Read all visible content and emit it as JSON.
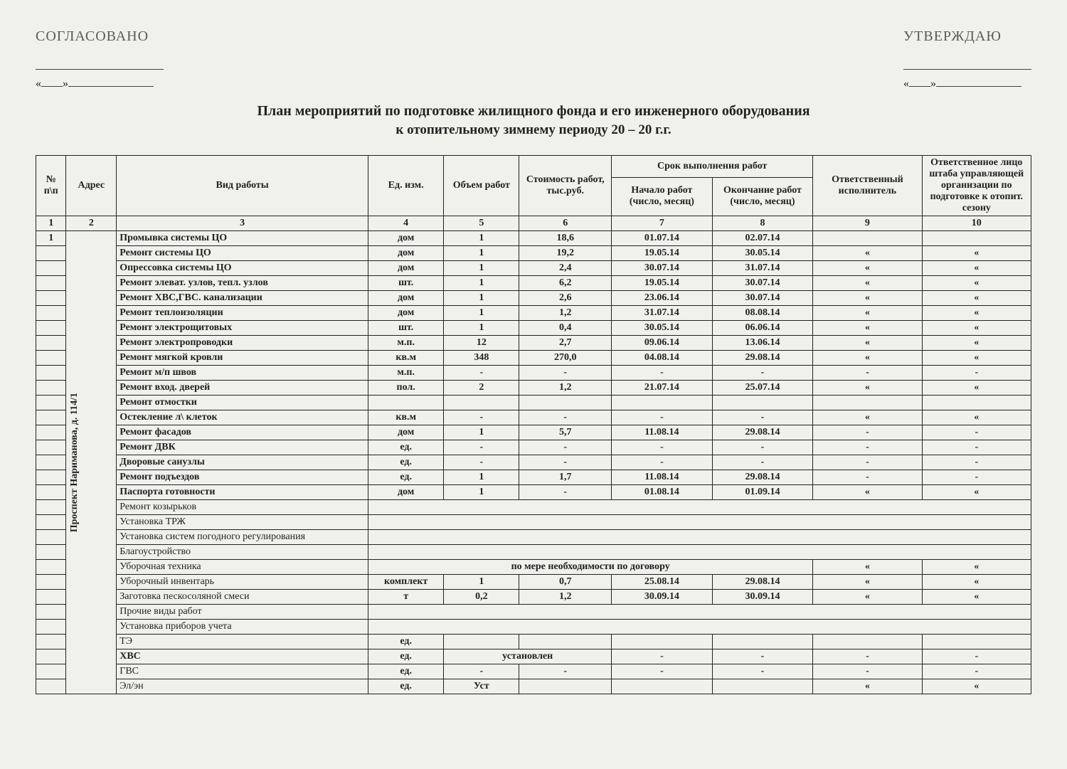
{
  "header": {
    "left_label": "СОГЛАСОВАНО",
    "right_label": "УТВЕРЖДАЮ",
    "quote_open": "«",
    "quote_close": "»"
  },
  "title": "План мероприятий  по подготовке жилищного фонда и его инженерного оборудования",
  "subtitle": "к отопительному зимнему периоду 20     – 20     г.г.",
  "columns": {
    "c1": "№ п\\п",
    "c2": "Адрес",
    "c3": "Вид работы",
    "c4": "Ед. изм.",
    "c5": "Объем работ",
    "c6": "Стоимость работ, тыс.руб.",
    "c7group": "Срок выполнения работ",
    "c7": "Начало работ (число, месяц)",
    "c8": "Окончание работ (число, месяц)",
    "c9": "Ответственный исполнитель",
    "c10": "Ответственное лицо штаба управляющей организации по подготовке к отопит. сезону"
  },
  "colnums": [
    "1",
    "2",
    "3",
    "4",
    "5",
    "6",
    "7",
    "8",
    "9",
    "10"
  ],
  "address": "Проспект  Нариманова, д. 114/1",
  "row_num": "1",
  "rows": [
    {
      "work": "Промывка системы ЦО",
      "unit": "дом",
      "vol": "1",
      "cost": "18,6",
      "start": "01.07.14",
      "end": "02.07.14",
      "resp": "",
      "resp2": ""
    },
    {
      "work": "Ремонт системы ЦО",
      "unit": "дом",
      "vol": "1",
      "cost": "19,2",
      "start": "19.05.14",
      "end": "30.05.14",
      "resp": "«",
      "resp2": "«"
    },
    {
      "work": "Опрессовка системы ЦО",
      "unit": "дом",
      "vol": "1",
      "cost": "2,4",
      "start": "30.07.14",
      "end": "31.07.14",
      "resp": "«",
      "resp2": "«"
    },
    {
      "work": "Ремонт элеват. узлов, тепл. узлов",
      "unit": "шт.",
      "vol": "1",
      "cost": "6,2",
      "start": "19.05.14",
      "end": "30.07.14",
      "resp": "«",
      "resp2": "«"
    },
    {
      "work": "Ремонт ХВС,ГВС. канализации",
      "unit": "дом",
      "vol": "1",
      "cost": "2,6",
      "start": "23.06.14",
      "end": "30.07.14",
      "resp": "«",
      "resp2": "«"
    },
    {
      "work": "Ремонт теплоизоляции",
      "unit": "дом",
      "vol": "1",
      "cost": "1,2",
      "start": "31.07.14",
      "end": "08.08.14",
      "resp": "«",
      "resp2": "«"
    },
    {
      "work": "Ремонт электрощитовых",
      "unit": "шт.",
      "vol": "1",
      "cost": "0,4",
      "start": "30.05.14",
      "end": "06.06.14",
      "resp": "«",
      "resp2": "«"
    },
    {
      "work": "Ремонт электропроводки",
      "unit": "м.п.",
      "vol": "12",
      "cost": "2,7",
      "start": "09.06.14",
      "end": "13.06.14",
      "resp": "«",
      "resp2": "«"
    },
    {
      "work": "Ремонт мягкой кровли",
      "unit": "кв.м",
      "vol": "348",
      "cost": "270,0",
      "start": "04.08.14",
      "end": "29.08.14",
      "resp": "«",
      "resp2": "«"
    },
    {
      "work": "Ремонт м/п швов",
      "unit": "м.п.",
      "vol": "-",
      "cost": "-",
      "start": "-",
      "end": "-",
      "resp": "-",
      "resp2": "-"
    },
    {
      "work": "Ремонт вход. дверей",
      "unit": "пол.",
      "vol": "2",
      "cost": "1,2",
      "start": "21.07.14",
      "end": "25.07.14",
      "resp": "«",
      "resp2": "«"
    },
    {
      "work": "Ремонт отмостки",
      "unit": "",
      "vol": "",
      "cost": "",
      "start": "",
      "end": "",
      "resp": "",
      "resp2": ""
    },
    {
      "work": "Остекление л\\ клеток",
      "unit": "кв.м",
      "vol": "-",
      "cost": "-",
      "start": "-",
      "end": "-",
      "resp": "«",
      "resp2": "«"
    },
    {
      "work": "Ремонт фасадов",
      "unit": "дом",
      "vol": "1",
      "cost": "5,7",
      "start": "11.08.14",
      "end": "29.08.14",
      "resp": "-",
      "resp2": "-"
    },
    {
      "work": "Ремонт ДВК",
      "unit": "ед.",
      "vol": "-",
      "cost": "-",
      "start": "-",
      "end": "-",
      "resp": "-",
      "resp2": "-"
    },
    {
      "work": "Дворовые санузлы",
      "unit": "ед.",
      "vol": "-",
      "cost": "-",
      "start": "-",
      "end": "-",
      "resp": "-",
      "resp2": "-"
    },
    {
      "work": "Ремонт подъездов",
      "unit": "ед.",
      "vol": "1",
      "cost": "1,7",
      "start": "11.08.14",
      "end": "29.08.14",
      "resp": "-",
      "resp2": "-"
    },
    {
      "work": "Паспорта готовности",
      "unit": "дом",
      "vol": "1",
      "cost": "-",
      "start": "01.08.14",
      "end": "01.09.14",
      "resp": "«",
      "resp2": "«"
    }
  ],
  "section_rows": [
    {
      "work": "Ремонт козырьков"
    },
    {
      "work": "Установка ТРЖ"
    },
    {
      "work": "Установка систем  погодного регулирования"
    },
    {
      "work": "Благоустройство"
    }
  ],
  "merged_row": {
    "work": "Уборочная техника",
    "merged_text": "по мере необходимости по договору",
    "resp": "«",
    "resp2": "«"
  },
  "rows2": [
    {
      "work": "Уборочный инвентарь",
      "unit": "комплект",
      "vol": "1",
      "cost": "0,7",
      "start": "25.08.14",
      "end": "29.08.14",
      "resp": "«",
      "resp2": "«"
    },
    {
      "work": "Заготовка пескосоляной смеси",
      "unit": "т",
      "vol": "0,2",
      "cost": "1,2",
      "start": "30.09.14",
      "end": "30.09.14",
      "resp": "«",
      "resp2": "«"
    }
  ],
  "section_rows2": [
    {
      "work": "Прочие виды работ"
    },
    {
      "work": "Установка приборов учета"
    }
  ],
  "rows3": [
    {
      "work": "ТЭ",
      "unit": "ед.",
      "vol": "",
      "cost": "",
      "start": "",
      "end": "",
      "resp": "",
      "resp2": ""
    }
  ],
  "xbc_row": {
    "work": "ХВС",
    "unit": "ед.",
    "merged_text": "установлен",
    "start": "-",
    "end": "-",
    "resp": "-",
    "resp2": "-"
  },
  "rows4": [
    {
      "work": "ГВС",
      "unit": "ед.",
      "vol": "-",
      "cost": "-",
      "start": "-",
      "end": "-",
      "resp": "-",
      "resp2": "-"
    },
    {
      "work": "Эл/эн",
      "unit": "ед.",
      "vol": "Уст",
      "cost": "",
      "start": "",
      "end": "",
      "resp": "«",
      "resp2": "«"
    }
  ]
}
